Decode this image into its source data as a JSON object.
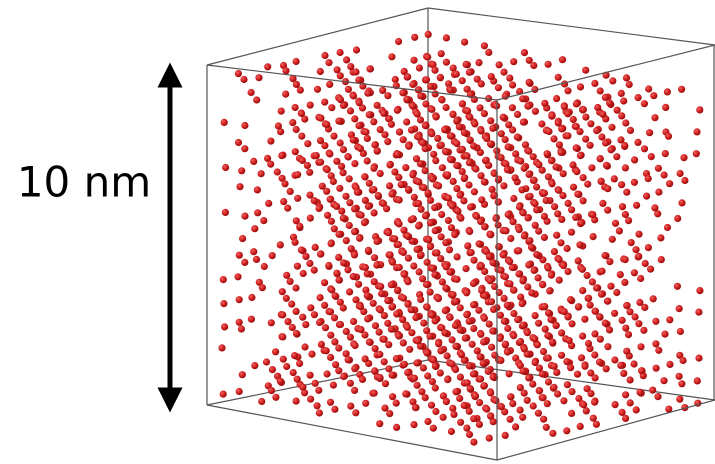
{
  "scale_label": "10 nm"
}
